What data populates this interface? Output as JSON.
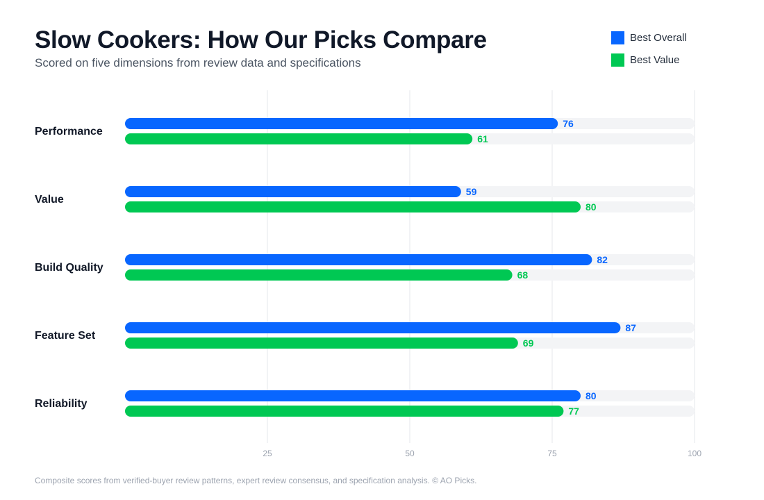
{
  "title": "Slow Cookers: How Our Picks Compare",
  "subtitle": "Scored on five dimensions from review data and specifications",
  "footer": "Composite scores from verified-buyer review patterns, expert review consensus, and specification analysis. © AO Picks.",
  "colors": {
    "best_overall": "#0866ff",
    "best_value": "#00c853",
    "track": "#f3f4f6",
    "grid": "#e5e7eb",
    "category_text": "#111827",
    "tick_text": "#9ca3af"
  },
  "chart_data": {
    "type": "bar",
    "orientation": "horizontal",
    "categories": [
      "Performance",
      "Value",
      "Build Quality",
      "Feature Set",
      "Reliability"
    ],
    "series": [
      {
        "name": "Best Overall",
        "color": "#0866ff",
        "values": [
          76,
          59,
          82,
          87,
          80
        ]
      },
      {
        "name": "Best Value",
        "color": "#00c853",
        "values": [
          61,
          80,
          68,
          69,
          77
        ]
      }
    ],
    "xlim": [
      0,
      100
    ],
    "xticks": [
      25,
      50,
      75,
      100
    ],
    "grid": true,
    "legend_position": "top-right",
    "data_labels": true
  }
}
